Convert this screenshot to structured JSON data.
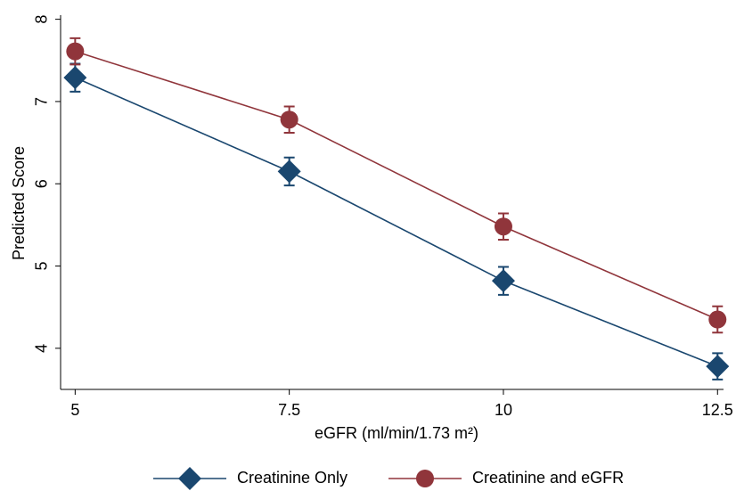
{
  "chart_data": {
    "type": "line",
    "y_label": "Predicted Score",
    "x_label": "eGFR (ml/min/1.73 m²)",
    "x": [
      5,
      7.5,
      10,
      12.5
    ],
    "series": [
      {
        "name": "Creatinine Only",
        "color": "#1a476f",
        "marker": "diamond",
        "values": [
          7.29,
          6.15,
          4.82,
          3.78
        ],
        "errors": [
          0.17,
          0.17,
          0.17,
          0.16
        ]
      },
      {
        "name": "Creatinine and eGFR",
        "color": "#90353b",
        "marker": "circle",
        "values": [
          7.61,
          6.78,
          5.48,
          4.35
        ],
        "errors": [
          0.16,
          0.16,
          0.16,
          0.16
        ]
      }
    ],
    "xlim": [
      4.83,
      12.57
    ],
    "ylim": [
      3.5,
      8.05
    ],
    "xticks": [
      5,
      7.5,
      10,
      12.5
    ],
    "yticks": [
      4,
      5,
      6,
      7,
      8
    ],
    "grid": false,
    "legend": "bottom"
  }
}
